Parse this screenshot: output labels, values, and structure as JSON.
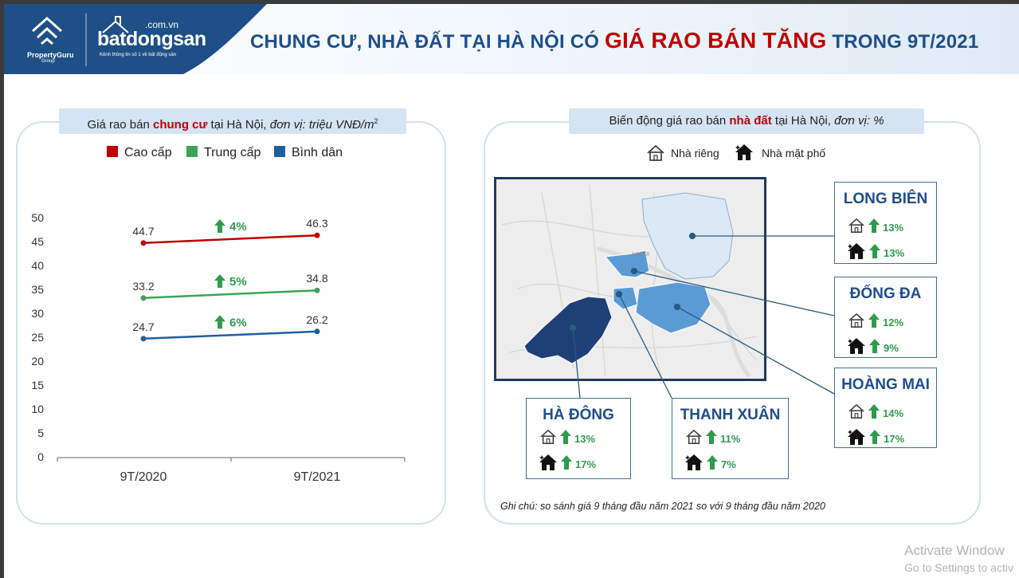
{
  "header": {
    "brand1_name": "PropertyGuru",
    "brand1_sub": "Group",
    "brand2_domain": ".com.vn",
    "brand2_name": "batdongsan",
    "brand2_tagline": "Kênh thông tin số 1 về bất động sản",
    "title_pre": "CHUNG CƯ, NHÀ ĐẤT TẠI HÀ NỘI CÓ ",
    "title_highlight": "GIÁ RAO BÁN TĂNG",
    "title_post": " TRONG 9T/2021",
    "brand_color": "#1f4e8c",
    "highlight_color": "#c00000"
  },
  "left_panel": {
    "pill_pre": "Giá rao bán ",
    "pill_bold": "chung cư",
    "pill_mid": " tại Hà Nội, ",
    "pill_italic": "đơn vị: triệu VNĐ/m",
    "pill_sup": "2"
  },
  "chart_data": {
    "type": "line",
    "categories": [
      "9T/2020",
      "9T/2021"
    ],
    "series": [
      {
        "name": "Cao cấp",
        "values": [
          44.7,
          46.3
        ],
        "color": "#c00000",
        "change": "4%"
      },
      {
        "name": "Trung cấp",
        "values": [
          33.2,
          34.8
        ],
        "color": "#3aa655",
        "change": "5%"
      },
      {
        "name": "Bình dân",
        "values": [
          24.7,
          26.2
        ],
        "color": "#1f5fa0",
        "change": "6%"
      }
    ],
    "ylim": [
      0,
      50
    ],
    "yticks": [
      "0",
      "5",
      "10",
      "15",
      "20",
      "25",
      "30",
      "35",
      "40",
      "45",
      "50"
    ],
    "legend_position": "top",
    "grid": false
  },
  "right_panel": {
    "pill_pre": "Biến động giá rao bán ",
    "pill_bold": "nhà đất",
    "pill_mid": " tại Hà Nội, ",
    "pill_italic": "đơn vị: %",
    "legend_private": "Nhà riêng",
    "legend_street": "Nhà mặt phố",
    "map_label": "HANOI",
    "districts": [
      {
        "name": "LONG BIÊN",
        "private": "13%",
        "street": "13%"
      },
      {
        "name": "ĐỐNG ĐA",
        "private": "12%",
        "street": "9%"
      },
      {
        "name": "HOÀNG MAI",
        "private": "14%",
        "street": "17%"
      },
      {
        "name": "HÀ ĐÔNG",
        "private": "13%",
        "street": "17%"
      },
      {
        "name": "THANH XUÂN",
        "private": "11%",
        "street": "7%"
      }
    ],
    "note": "Ghi chú: so sánh giá 9 tháng đầu năm 2021 so với 9 tháng đầu năm 2020"
  },
  "watermark": {
    "line1": "Activate Window",
    "line2": "Go to Settings to activ"
  },
  "icons": {
    "up_arrow": "up-arrow-icon",
    "private_house": "house-outline-icon",
    "street_house": "house-sparkle-icon"
  },
  "colors": {
    "up_arrow": "#2e9b4e",
    "panel_border": "#cfe1f1",
    "pill_bg": "#d4e4f3"
  }
}
